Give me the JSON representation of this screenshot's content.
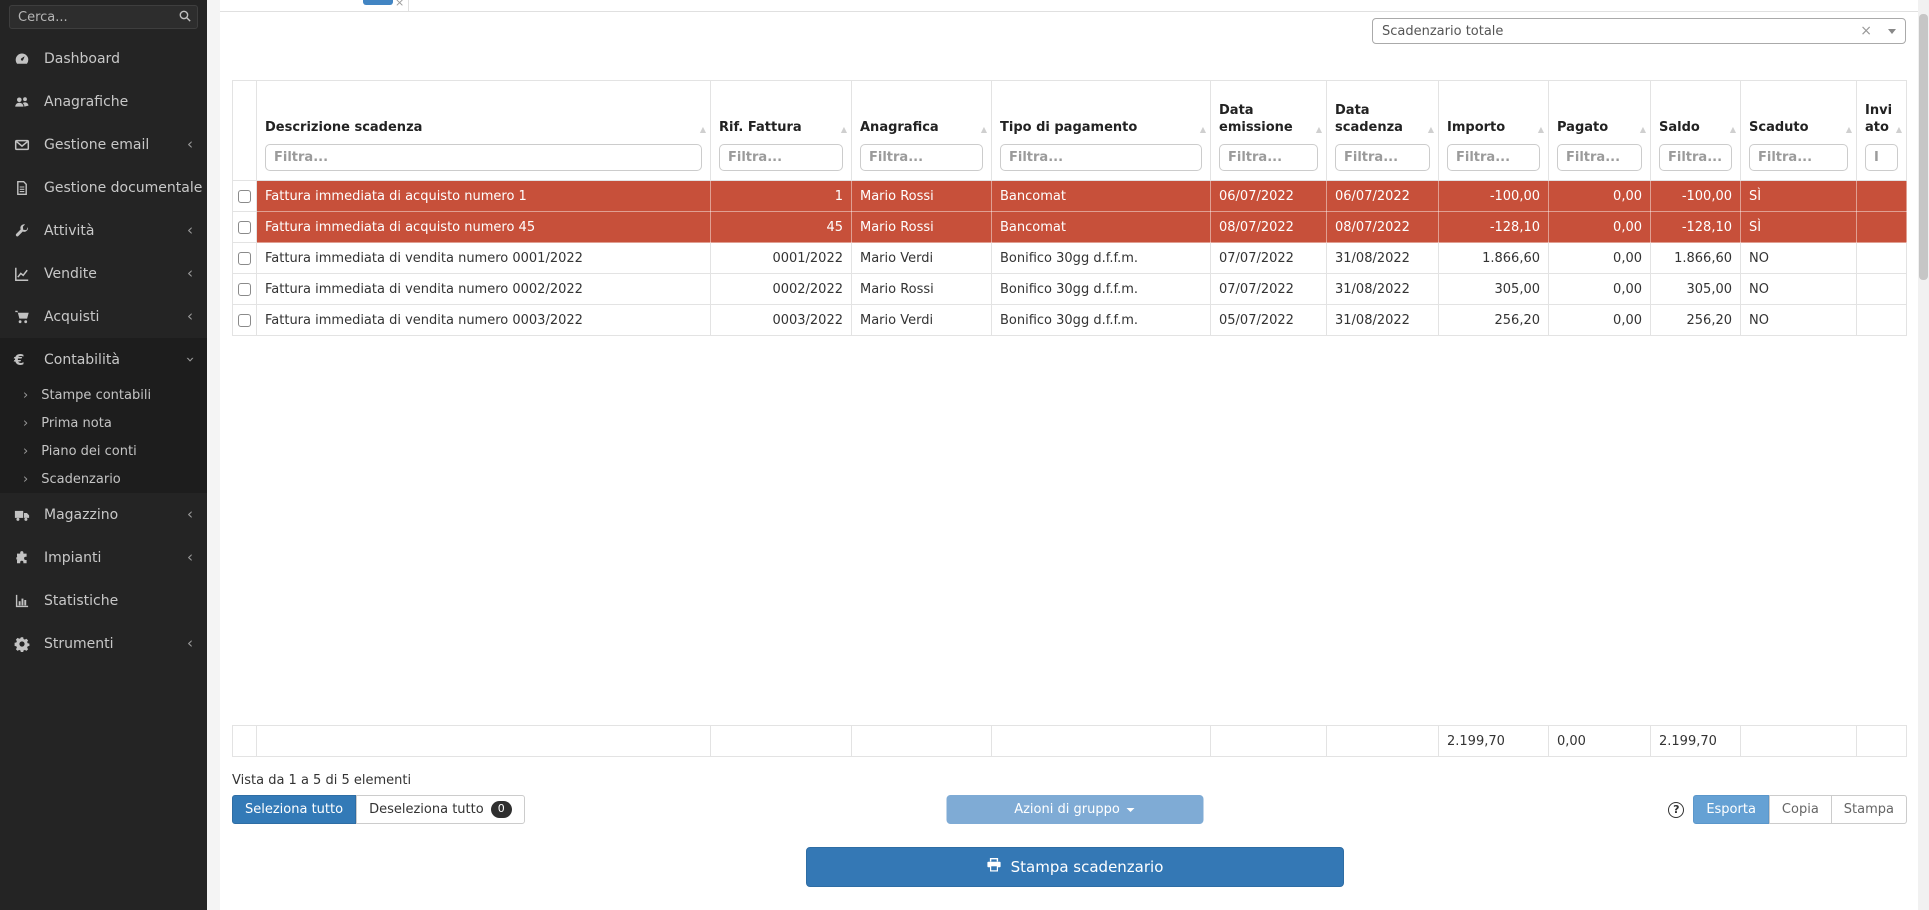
{
  "sidebar": {
    "search": {
      "placeholder": "Cerca...",
      "icon": "search-icon"
    },
    "items": [
      {
        "id": "dashboard",
        "label": "Dashboard",
        "icon": "gauge-icon"
      },
      {
        "id": "anagrafiche",
        "label": "Anagrafiche",
        "icon": "users-icon"
      },
      {
        "id": "gestione-email",
        "label": "Gestione email",
        "icon": "envelope-icon",
        "chevron": "collapsed"
      },
      {
        "id": "gestione-documentale",
        "label": "Gestione documentale",
        "icon": "document-icon"
      },
      {
        "id": "attivita",
        "label": "Attività",
        "icon": "wrench-icon",
        "chevron": "collapsed"
      },
      {
        "id": "vendite",
        "label": "Vendite",
        "icon": "chart-line-icon",
        "chevron": "collapsed"
      },
      {
        "id": "acquisti",
        "label": "Acquisti",
        "icon": "cart-icon",
        "chevron": "collapsed"
      },
      {
        "id": "contabilita",
        "label": "Contabilità",
        "icon": "euro-icon",
        "chevron": "expanded",
        "submenu": [
          "Stampe contabili",
          "Prima nota",
          "Piano dei conti",
          "Scadenzario"
        ]
      },
      {
        "id": "magazzino",
        "label": "Magazzino",
        "icon": "truck-icon",
        "chevron": "collapsed"
      },
      {
        "id": "impianti",
        "label": "Impianti",
        "icon": "puzzle-icon",
        "chevron": "collapsed"
      },
      {
        "id": "statistiche",
        "label": "Statistiche",
        "icon": "bar-chart-icon"
      },
      {
        "id": "strumenti",
        "label": "Strumenti",
        "icon": "gear-icon",
        "chevron": "collapsed"
      }
    ]
  },
  "toolbar": {
    "scadenzario_select": {
      "value": "Scadenzario totale",
      "clear_icon": "×"
    }
  },
  "table": {
    "filter_placeholder": "Filtra...",
    "columns": [
      {
        "key": "checkbox",
        "label": "",
        "filter": false
      },
      {
        "key": "desc",
        "label": "Descrizione scadenza",
        "filter": true
      },
      {
        "key": "rif",
        "label": "Rif. Fattura",
        "filter": true
      },
      {
        "key": "anagrafica",
        "label": "Anagrafica",
        "filter": true
      },
      {
        "key": "tipo",
        "label": "Tipo di pagamento",
        "filter": true
      },
      {
        "key": "emissione",
        "label": "Data emissione",
        "filter": true
      },
      {
        "key": "scadenza",
        "label": "Data scadenza",
        "filter": true
      },
      {
        "key": "importo",
        "label": "Importo",
        "filter": true
      },
      {
        "key": "pagato",
        "label": "Pagato",
        "filter": true
      },
      {
        "key": "saldo",
        "label": "Saldo",
        "filter": true
      },
      {
        "key": "scaduto",
        "label": "Scaduto",
        "filter": true
      },
      {
        "key": "inviato",
        "label": "Inviato",
        "filter": true,
        "filter_placeholder": "I"
      }
    ],
    "rows": [
      {
        "desc": "Fattura immediata di acquisto numero 1",
        "rif": "1",
        "anagrafica": "Mario Rossi",
        "tipo": "Bancomat",
        "emissione": "06/07/2022",
        "scadenza": "06/07/2022",
        "importo": "-100,00",
        "pagato": "0,00",
        "saldo": "-100,00",
        "scaduto": "SÌ",
        "inviato": "",
        "overdue": true
      },
      {
        "desc": "Fattura immediata di acquisto numero 45",
        "rif": "45",
        "anagrafica": "Mario Rossi",
        "tipo": "Bancomat",
        "emissione": "08/07/2022",
        "scadenza": "08/07/2022",
        "importo": "-128,10",
        "pagato": "0,00",
        "saldo": "-128,10",
        "scaduto": "SÌ",
        "inviato": "",
        "overdue": true
      },
      {
        "desc": "Fattura immediata di vendita numero 0001/2022",
        "rif": "0001/2022",
        "anagrafica": "Mario Verdi",
        "tipo": "Bonifico 30gg d.f.f.m.",
        "emissione": "07/07/2022",
        "scadenza": "31/08/2022",
        "importo": "1.866,60",
        "pagato": "0,00",
        "saldo": "1.866,60",
        "scaduto": "NO",
        "inviato": "",
        "overdue": false
      },
      {
        "desc": "Fattura immediata di vendita numero 0002/2022",
        "rif": "0002/2022",
        "anagrafica": "Mario Rossi",
        "tipo": "Bonifico 30gg d.f.f.m.",
        "emissione": "07/07/2022",
        "scadenza": "31/08/2022",
        "importo": "305,00",
        "pagato": "0,00",
        "saldo": "305,00",
        "scaduto": "NO",
        "inviato": "",
        "overdue": false
      },
      {
        "desc": "Fattura immediata di vendita numero 0003/2022",
        "rif": "0003/2022",
        "anagrafica": "Mario Verdi",
        "tipo": "Bonifico 30gg d.f.f.m.",
        "emissione": "05/07/2022",
        "scadenza": "31/08/2022",
        "importo": "256,20",
        "pagato": "0,00",
        "saldo": "256,20",
        "scaduto": "NO",
        "inviato": "",
        "overdue": false
      }
    ],
    "totals": {
      "importo": "2.199,70",
      "pagato": "0,00",
      "saldo": "2.199,70"
    },
    "info": "Vista da 1 a 5 di 5 elementi"
  },
  "actions": {
    "seleziona_tutto": "Seleziona tutto",
    "deseleziona_tutto": "Deseleziona tutto",
    "deseleziona_count": "0",
    "azioni_di_gruppo": "Azioni di gruppo",
    "help": "?",
    "esporta": "Esporta",
    "copia": "Copia",
    "stampa": "Stampa",
    "stampa_scadenzario": "Stampa scadenzario"
  },
  "colors": {
    "sidebar_bg": "#242424",
    "overdue_row": "#c7503a",
    "primary_button": "#337ab7",
    "group_button": "#7fabd5",
    "export_active": "#65a1d4",
    "print_button": "#3478b5"
  }
}
